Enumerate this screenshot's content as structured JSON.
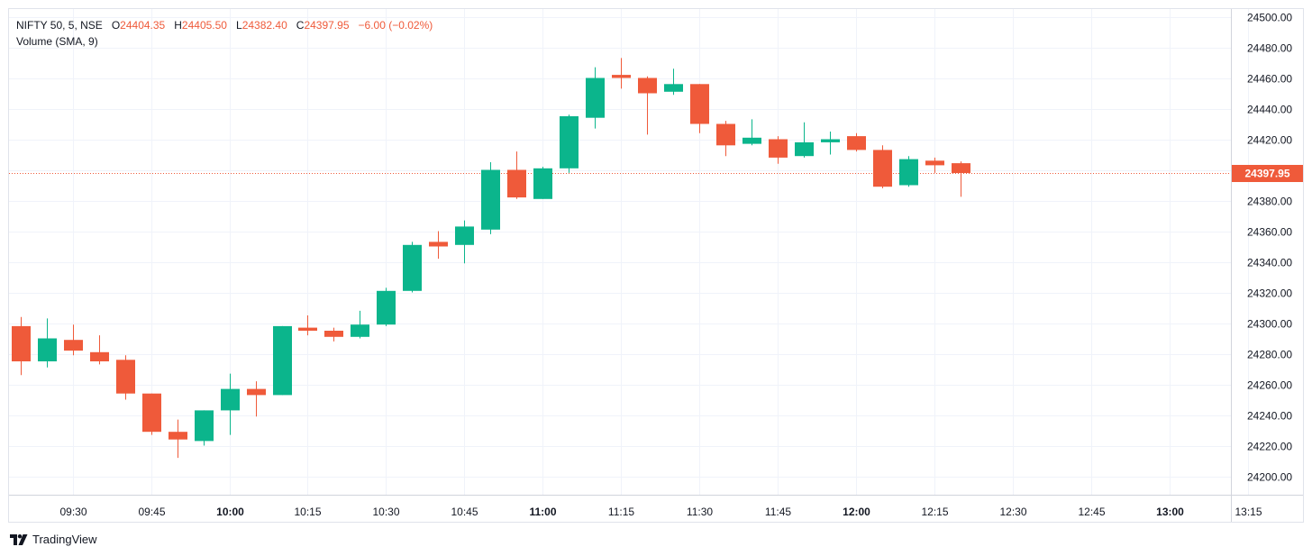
{
  "header": {
    "symbol": "NIFTY 50, 5, NSE",
    "o_label": "O",
    "o_value": "24404.35",
    "h_label": "H",
    "h_value": "24405.50",
    "l_label": "L",
    "l_value": "24382.40",
    "c_label": "C",
    "c_value": "24397.95",
    "change": "−6.00 (−0.02%)",
    "volume_label": "Volume (SMA, 9)"
  },
  "price_label": "24397.95",
  "brand": {
    "name": "TradingView",
    "icon": "tradingview-logo-icon"
  },
  "colors": {
    "up": "#0bb58c",
    "down": "#ef5a3a",
    "grid": "#f0f3fa",
    "last_price": "#ef5a3a"
  },
  "chart_data": {
    "type": "candlestick",
    "interval_minutes": 5,
    "y_axis": {
      "range": [
        24190,
        24505
      ],
      "ticks": [
        "24200.00",
        "24220.00",
        "24240.00",
        "24260.00",
        "24280.00",
        "24300.00",
        "24320.00",
        "24340.00",
        "24360.00",
        "24380.00",
        "24400.00",
        "24420.00",
        "24440.00",
        "24460.00",
        "24480.00",
        "24500.00"
      ],
      "position": "right"
    },
    "x_axis": {
      "labels": [
        {
          "t": "09:30",
          "bold": false
        },
        {
          "t": "09:45",
          "bold": false
        },
        {
          "t": "10:00",
          "bold": true
        },
        {
          "t": "10:15",
          "bold": false
        },
        {
          "t": "10:30",
          "bold": false
        },
        {
          "t": "10:45",
          "bold": false
        },
        {
          "t": "11:00",
          "bold": true
        },
        {
          "t": "11:15",
          "bold": false
        },
        {
          "t": "11:30",
          "bold": false
        },
        {
          "t": "11:45",
          "bold": false
        },
        {
          "t": "12:00",
          "bold": true
        },
        {
          "t": "12:15",
          "bold": false
        },
        {
          "t": "12:30",
          "bold": false
        },
        {
          "t": "12:45",
          "bold": false
        },
        {
          "t": "13:00",
          "bold": true
        },
        {
          "t": "13:15",
          "bold": false
        }
      ]
    },
    "grid": true,
    "last_price": 24397.95,
    "candles": [
      {
        "t": "09:20",
        "o": 24298,
        "h": 24304,
        "l": 24266,
        "c": 24275
      },
      {
        "t": "09:25",
        "o": 24275,
        "h": 24303,
        "l": 24271,
        "c": 24290
      },
      {
        "t": "09:30",
        "o": 24289,
        "h": 24299,
        "l": 24279,
        "c": 24282
      },
      {
        "t": "09:35",
        "o": 24281,
        "h": 24292,
        "l": 24273,
        "c": 24275
      },
      {
        "t": "09:40",
        "o": 24276,
        "h": 24279,
        "l": 24250,
        "c": 24254
      },
      {
        "t": "09:45",
        "o": 24254,
        "h": 24254,
        "l": 24227,
        "c": 24229
      },
      {
        "t": "09:50",
        "o": 24229,
        "h": 24237,
        "l": 24212,
        "c": 24224
      },
      {
        "t": "09:55",
        "o": 24223,
        "h": 24243,
        "l": 24220,
        "c": 24243
      },
      {
        "t": "10:00",
        "o": 24243,
        "h": 24267,
        "l": 24227,
        "c": 24257
      },
      {
        "t": "10:05",
        "o": 24257,
        "h": 24262,
        "l": 24239,
        "c": 24253
      },
      {
        "t": "10:10",
        "o": 24253,
        "h": 24298,
        "l": 24253,
        "c": 24298
      },
      {
        "t": "10:15",
        "o": 24297,
        "h": 24305,
        "l": 24292,
        "c": 24295
      },
      {
        "t": "10:20",
        "o": 24295,
        "h": 24297,
        "l": 24288,
        "c": 24291
      },
      {
        "t": "10:25",
        "o": 24291,
        "h": 24308,
        "l": 24290,
        "c": 24299
      },
      {
        "t": "10:30",
        "o": 24299,
        "h": 24323,
        "l": 24298,
        "c": 24321
      },
      {
        "t": "10:35",
        "o": 24321,
        "h": 24353,
        "l": 24320,
        "c": 24351
      },
      {
        "t": "10:40",
        "o": 24353,
        "h": 24360,
        "l": 24342,
        "c": 24350
      },
      {
        "t": "10:45",
        "o": 24351,
        "h": 24367,
        "l": 24339,
        "c": 24363
      },
      {
        "t": "10:50",
        "o": 24361,
        "h": 24405,
        "l": 24358,
        "c": 24400
      },
      {
        "t": "10:55",
        "o": 24400,
        "h": 24412,
        "l": 24381,
        "c": 24382
      },
      {
        "t": "11:00",
        "o": 24381,
        "h": 24402,
        "l": 24381,
        "c": 24401
      },
      {
        "t": "11:05",
        "o": 24401,
        "h": 24436,
        "l": 24398,
        "c": 24435
      },
      {
        "t": "11:10",
        "o": 24434,
        "h": 24467,
        "l": 24427,
        "c": 24460
      },
      {
        "t": "11:15",
        "o": 24462,
        "h": 24473,
        "l": 24453,
        "c": 24460
      },
      {
        "t": "11:20",
        "o": 24460,
        "h": 24461,
        "l": 24423,
        "c": 24450
      },
      {
        "t": "11:25",
        "o": 24451,
        "h": 24466,
        "l": 24449,
        "c": 24456
      },
      {
        "t": "11:30",
        "o": 24456,
        "h": 24456,
        "l": 24424,
        "c": 24430
      },
      {
        "t": "11:35",
        "o": 24430,
        "h": 24432,
        "l": 24409,
        "c": 24416
      },
      {
        "t": "11:40",
        "o": 24417,
        "h": 24433,
        "l": 24416,
        "c": 24421
      },
      {
        "t": "11:45",
        "o": 24420,
        "h": 24422,
        "l": 24404,
        "c": 24408
      },
      {
        "t": "11:50",
        "o": 24409,
        "h": 24431,
        "l": 24408,
        "c": 24418
      },
      {
        "t": "11:55",
        "o": 24418,
        "h": 24425,
        "l": 24410,
        "c": 24420
      },
      {
        "t": "12:00",
        "o": 24422,
        "h": 24424,
        "l": 24412,
        "c": 24413
      },
      {
        "t": "12:05",
        "o": 24413,
        "h": 24416,
        "l": 24388,
        "c": 24389
      },
      {
        "t": "12:10",
        "o": 24390,
        "h": 24409,
        "l": 24389,
        "c": 24407
      },
      {
        "t": "12:15",
        "o": 24406,
        "h": 24408,
        "l": 24398,
        "c": 24403
      },
      {
        "t": "12:20",
        "o": 24404.35,
        "h": 24405.5,
        "l": 24382.4,
        "c": 24397.95
      }
    ]
  }
}
